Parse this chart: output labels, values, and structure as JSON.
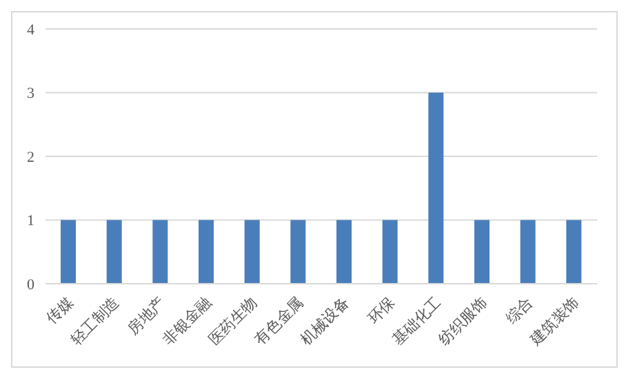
{
  "chart_data": {
    "type": "bar",
    "categories": [
      "传媒",
      "轻工制造",
      "房地产",
      "非银金融",
      "医药生物",
      "有色金属",
      "机械设备",
      "环保",
      "基础化工",
      "纺织服饰",
      "综合",
      "建筑装饰"
    ],
    "values": [
      1,
      1,
      1,
      1,
      1,
      1,
      1,
      1,
      3,
      1,
      1,
      1
    ],
    "color": "#4a7ebb",
    "ylim": [
      0,
      4
    ],
    "yticks": [
      0,
      1,
      2,
      3,
      4
    ],
    "grid": "y"
  }
}
